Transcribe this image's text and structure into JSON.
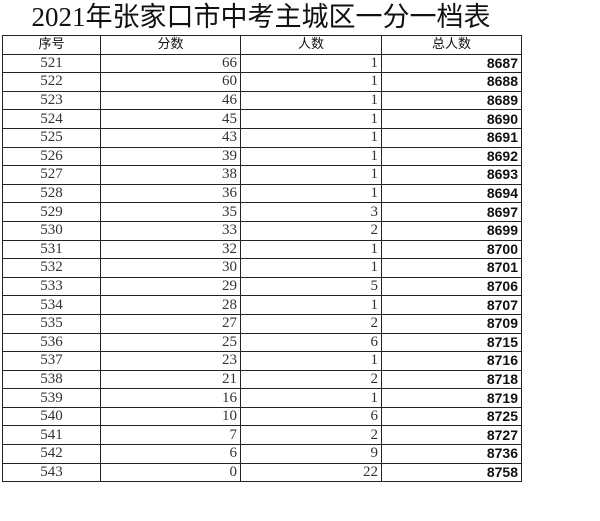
{
  "title": "2021年张家口市中考主城区一分一档表",
  "table": {
    "headers": [
      "序号",
      "分数",
      "人数",
      "总人数"
    ],
    "rows": [
      [
        "521",
        "66",
        "1",
        "8687"
      ],
      [
        "522",
        "60",
        "1",
        "8688"
      ],
      [
        "523",
        "46",
        "1",
        "8689"
      ],
      [
        "524",
        "45",
        "1",
        "8690"
      ],
      [
        "525",
        "43",
        "1",
        "8691"
      ],
      [
        "526",
        "39",
        "1",
        "8692"
      ],
      [
        "527",
        "38",
        "1",
        "8693"
      ],
      [
        "528",
        "36",
        "1",
        "8694"
      ],
      [
        "529",
        "35",
        "3",
        "8697"
      ],
      [
        "530",
        "33",
        "2",
        "8699"
      ],
      [
        "531",
        "32",
        "1",
        "8700"
      ],
      [
        "532",
        "30",
        "1",
        "8701"
      ],
      [
        "533",
        "29",
        "5",
        "8706"
      ],
      [
        "534",
        "28",
        "1",
        "8707"
      ],
      [
        "535",
        "27",
        "2",
        "8709"
      ],
      [
        "536",
        "25",
        "6",
        "8715"
      ],
      [
        "537",
        "23",
        "1",
        "8716"
      ],
      [
        "538",
        "21",
        "2",
        "8718"
      ],
      [
        "539",
        "16",
        "1",
        "8719"
      ],
      [
        "540",
        "10",
        "6",
        "8725"
      ],
      [
        "541",
        "7",
        "2",
        "8727"
      ],
      [
        "542",
        "6",
        "9",
        "8736"
      ],
      [
        "543",
        "0",
        "22",
        "8758"
      ]
    ]
  }
}
